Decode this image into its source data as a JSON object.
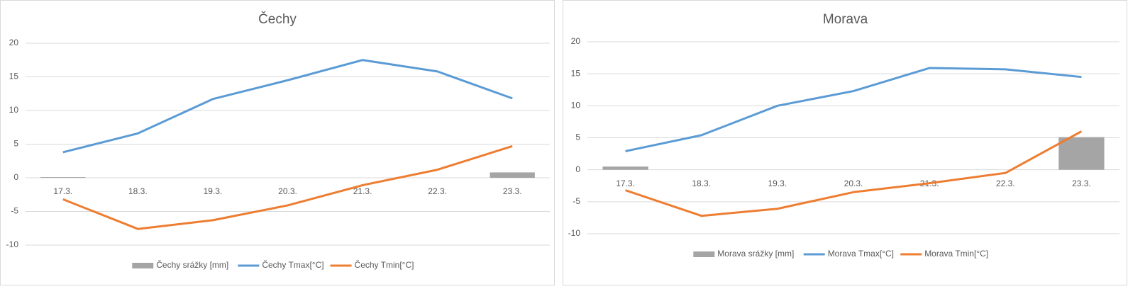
{
  "chart_data": [
    {
      "type": "combo",
      "title": "Čechy",
      "categories": [
        "17.3.",
        "18.3.",
        "19.3.",
        "20.3.",
        "21.3.",
        "22.3.",
        "23.3."
      ],
      "ylim": [
        -10,
        20
      ],
      "yticks": [
        -10,
        -5,
        0,
        5,
        10,
        15,
        20
      ],
      "grid": true,
      "legend": "bottom",
      "series": [
        {
          "name": "Čechy srážky [mm]",
          "type": "bar",
          "color": "#a5a5a5",
          "values": [
            0.1,
            0,
            0,
            0,
            0,
            0,
            0.8
          ]
        },
        {
          "name": "Čechy Tmax[°C]",
          "type": "line",
          "color": "#5b9bd5",
          "values": [
            3.8,
            6.6,
            11.7,
            14.5,
            17.5,
            15.8,
            11.8
          ]
        },
        {
          "name": "Čechy Tmin[°C]",
          "type": "line",
          "color": "#ed7d31",
          "values": [
            -3.2,
            -7.6,
            -6.3,
            -4.1,
            -1.1,
            1.2,
            4.7
          ]
        }
      ]
    },
    {
      "type": "combo",
      "title": "Morava",
      "categories": [
        "17.3.",
        "18.3.",
        "19.3.",
        "20.3.",
        "21.3.",
        "22.3.",
        "23.3."
      ],
      "ylim": [
        -10,
        20
      ],
      "yticks": [
        -10,
        -5,
        0,
        5,
        10,
        15,
        20
      ],
      "grid": true,
      "legend": "bottom",
      "series": [
        {
          "name": "Morava srážky [mm]",
          "type": "bar",
          "color": "#a5a5a5",
          "values": [
            0.5,
            0,
            0,
            0,
            0,
            0,
            5.1
          ]
        },
        {
          "name": "Morava Tmax[°C]",
          "type": "line",
          "color": "#5b9bd5",
          "values": [
            2.9,
            5.4,
            10.0,
            12.3,
            15.9,
            15.7,
            14.5
          ]
        },
        {
          "name": "Morava Tmin[°C]",
          "type": "line",
          "color": "#ed7d31",
          "values": [
            -3.2,
            -7.2,
            -6.1,
            -3.5,
            -2.1,
            -0.5,
            6.0
          ]
        }
      ]
    }
  ]
}
